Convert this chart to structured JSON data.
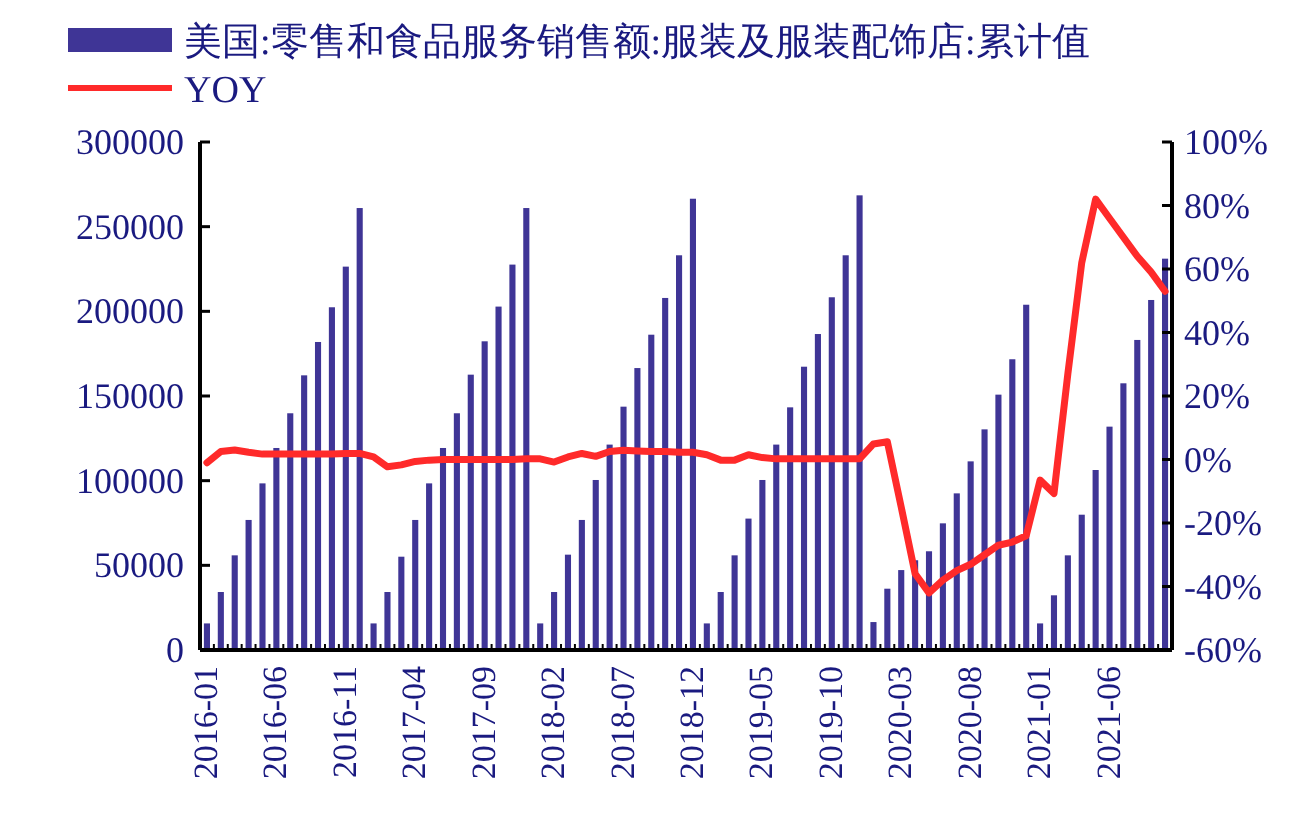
{
  "chart_data": {
    "type": "bar",
    "categories": [
      "2016-01",
      null,
      null,
      null,
      null,
      "2016-06",
      null,
      null,
      null,
      null,
      "2016-11",
      null,
      null,
      null,
      null,
      "2017-04",
      null,
      null,
      null,
      null,
      "2017-09",
      null,
      null,
      null,
      null,
      "2018-02",
      null,
      null,
      null,
      null,
      "2018-07",
      null,
      null,
      null,
      null,
      "2018-12",
      null,
      null,
      null,
      null,
      "2019-05",
      null,
      null,
      null,
      null,
      "2019-10",
      null,
      null,
      null,
      null,
      "2020-03",
      null,
      null,
      null,
      null,
      "2020-08",
      null,
      null,
      null,
      null,
      "2021-01",
      null,
      null,
      null,
      null,
      "2021-06",
      null,
      null,
      null,
      null
    ],
    "series": [
      {
        "name": "美国:零售和食品服务销售额:服装及服装配饰店:累计值",
        "color": "#3f3596",
        "values": [
          15700,
          34250,
          55900,
          76800,
          98400,
          119300,
          139800,
          162200,
          181900,
          202400,
          226400,
          261000,
          15700,
          34250,
          55100,
          76800,
          98400,
          119300,
          139800,
          162600,
          182300,
          202800,
          227600,
          261000,
          15700,
          34250,
          56300,
          76800,
          100400,
          121300,
          143700,
          166500,
          186200,
          207900,
          233100,
          266500,
          15700,
          34250,
          55900,
          77600,
          100400,
          121300,
          143300,
          167300,
          186600,
          208300,
          233100,
          268500,
          16500,
          36200,
          47200,
          53000,
          58300,
          74800,
          92500,
          111400,
          130300,
          150800,
          171700,
          203900,
          15700,
          32300,
          55900,
          79900,
          106300,
          131900,
          157500,
          183100,
          206700,
          231100
        ]
      },
      {
        "name": "YOY",
        "type": "line",
        "axis": "y2",
        "color": "#ff2a2a",
        "values": [
          -1,
          2.5,
          3,
          2.3,
          1.7,
          1.7,
          1.7,
          1.7,
          1.7,
          1.7,
          1.9,
          1.9,
          0.8,
          -2.3,
          -1.7,
          -0.6,
          -0.2,
          0,
          0,
          0,
          0,
          0,
          0,
          0.2,
          0.2,
          -0.8,
          0.8,
          1.9,
          1,
          2.5,
          2.9,
          2.7,
          2.5,
          2.5,
          2.3,
          2.3,
          1.5,
          -0.2,
          -0.2,
          1.5,
          0.6,
          0.2,
          0.2,
          0.2,
          0.2,
          0.2,
          0.2,
          0.2,
          4.9,
          5.6,
          -15,
          -36,
          -42,
          -38,
          -35,
          -33,
          -30,
          -27,
          -26,
          -24,
          -6.5,
          -10.7,
          27,
          62,
          82,
          76,
          70,
          64,
          59,
          53
        ]
      }
    ],
    "ylim": [
      0,
      300000
    ],
    "yticks": [
      0,
      50000,
      100000,
      150000,
      200000,
      250000,
      300000
    ],
    "y2lim": [
      -60,
      100
    ],
    "y2ticks": [
      {
        "value": -60,
        "label": "-60%"
      },
      {
        "value": -40,
        "label": "-40%"
      },
      {
        "value": -20,
        "label": "-20%"
      },
      {
        "value": 0,
        "label": "0%"
      },
      {
        "value": 20,
        "label": "20%"
      },
      {
        "value": 40,
        "label": "40%"
      },
      {
        "value": 60,
        "label": "60%"
      },
      {
        "value": 80,
        "label": "80%"
      },
      {
        "value": 100,
        "label": "100%"
      }
    ],
    "legend": "top left",
    "grid": false
  }
}
